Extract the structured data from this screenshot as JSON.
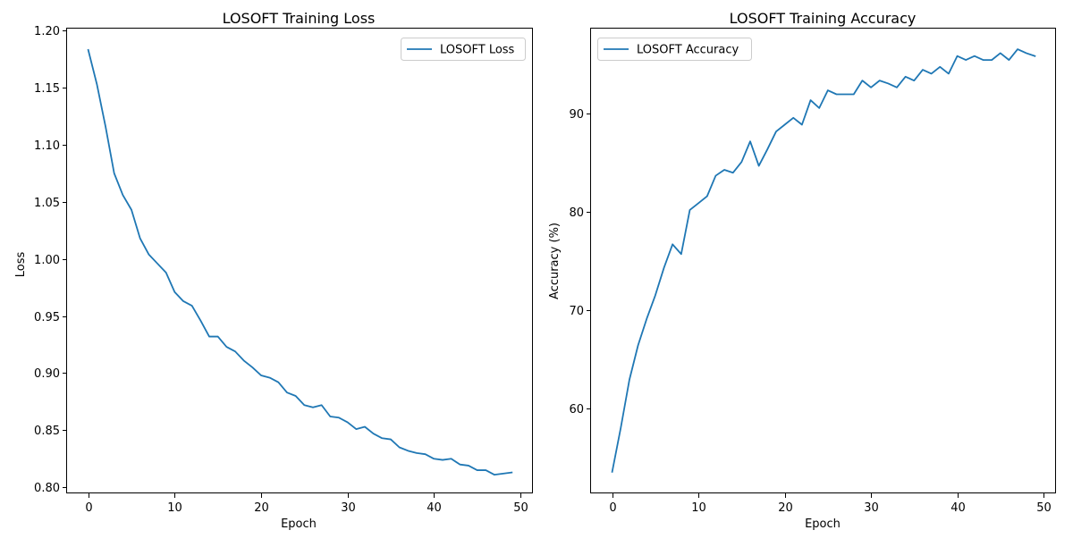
{
  "colors": {
    "series": "#1f77b4"
  },
  "chart_data": [
    {
      "type": "line",
      "title": "LOSOFT Training Loss",
      "xlabel": "Epoch",
      "ylabel": "Loss",
      "xlim": [
        -2.45,
        51.45
      ],
      "ylim": [
        0.7947,
        1.2017
      ],
      "xticks": [
        0,
        10,
        20,
        30,
        40,
        50
      ],
      "xtick_labels": [
        "0",
        "10",
        "20",
        "30",
        "40",
        "50"
      ],
      "yticks": [
        0.8,
        0.85,
        0.9,
        0.95,
        1.0,
        1.05,
        1.1,
        1.15,
        1.2
      ],
      "ytick_labels": [
        "0.80",
        "0.85",
        "0.90",
        "0.95",
        "1.00",
        "1.05",
        "1.10",
        "1.15",
        "1.20"
      ],
      "grid": false,
      "legend_position": "upper right",
      "series": [
        {
          "name": "LOSOFT Loss",
          "x": [
            0,
            1,
            2,
            3,
            4,
            5,
            6,
            7,
            8,
            9,
            10,
            11,
            12,
            13,
            14,
            15,
            16,
            17,
            18,
            19,
            20,
            21,
            22,
            23,
            24,
            25,
            26,
            27,
            28,
            29,
            30,
            31,
            32,
            33,
            34,
            35,
            36,
            37,
            38,
            39,
            40,
            41,
            42,
            43,
            44,
            45,
            46,
            47,
            48,
            49
          ],
          "values": [
            1.183,
            1.153,
            1.116,
            1.075,
            1.056,
            1.043,
            1.018,
            1.004,
            0.996,
            0.988,
            0.971,
            0.963,
            0.959,
            0.946,
            0.932,
            0.932,
            0.923,
            0.919,
            0.911,
            0.905,
            0.898,
            0.896,
            0.892,
            0.883,
            0.88,
            0.872,
            0.87,
            0.872,
            0.862,
            0.861,
            0.857,
            0.851,
            0.853,
            0.847,
            0.843,
            0.842,
            0.835,
            0.832,
            0.83,
            0.829,
            0.825,
            0.824,
            0.825,
            0.82,
            0.819,
            0.815,
            0.815,
            0.811,
            0.812,
            0.813
          ]
        }
      ]
    },
    {
      "type": "line",
      "title": "LOSOFT Training Accuracy",
      "xlabel": "Epoch",
      "ylabel": "Accuracy (%)",
      "xlim": [
        -2.45,
        51.45
      ],
      "ylim": [
        51.3,
        98.7
      ],
      "xticks": [
        0,
        10,
        20,
        30,
        40,
        50
      ],
      "xtick_labels": [
        "0",
        "10",
        "20",
        "30",
        "40",
        "50"
      ],
      "yticks": [
        60,
        70,
        80,
        90
      ],
      "ytick_labels": [
        "60",
        "70",
        "80",
        "90"
      ],
      "grid": false,
      "legend_position": "upper left",
      "series": [
        {
          "name": "LOSOFT Accuracy",
          "x": [
            0,
            1,
            2,
            3,
            4,
            5,
            6,
            7,
            8,
            9,
            10,
            11,
            12,
            13,
            14,
            15,
            16,
            17,
            18,
            19,
            20,
            21,
            22,
            23,
            24,
            25,
            26,
            27,
            28,
            29,
            30,
            31,
            32,
            33,
            34,
            35,
            36,
            37,
            38,
            39,
            40,
            41,
            42,
            43,
            44,
            45,
            46,
            47,
            48,
            49
          ],
          "values": [
            53.5,
            58.0,
            62.9,
            66.4,
            69.1,
            71.5,
            74.3,
            76.7,
            75.7,
            80.2,
            80.9,
            81.6,
            83.7,
            84.3,
            84.0,
            85.1,
            87.2,
            84.7,
            86.4,
            88.2,
            88.9,
            89.6,
            88.9,
            91.4,
            90.6,
            92.4,
            92.0,
            92.0,
            92.0,
            93.4,
            92.7,
            93.4,
            93.1,
            92.7,
            93.8,
            93.4,
            94.5,
            94.1,
            94.8,
            94.1,
            95.9,
            95.5,
            95.9,
            95.5,
            95.5,
            96.2,
            95.5,
            96.6,
            96.2,
            95.9
          ]
        }
      ]
    }
  ]
}
